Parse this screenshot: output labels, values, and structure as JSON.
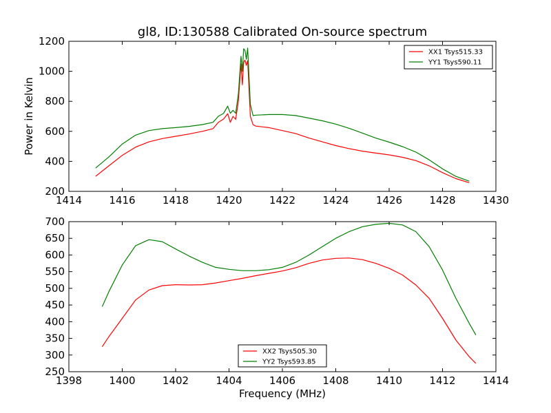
{
  "chart_data": [
    {
      "type": "line",
      "title": "gl8, ID:130588 Calibrated On-source spectrum",
      "xlabel": "",
      "ylabel": "Power in Kelvin",
      "xlim": [
        1414,
        1430
      ],
      "ylim": [
        200,
        1200
      ],
      "xticks": [
        "1414",
        "1416",
        "1418",
        "1420",
        "1422",
        "1424",
        "1426",
        "1428",
        "1430"
      ],
      "yticks": [
        "200",
        "400",
        "600",
        "800",
        "1000",
        "1200"
      ],
      "legend": "top-right",
      "grid": false,
      "series": [
        {
          "name": "XX1 Tsys515.33",
          "color": "#ff0000",
          "x": [
            1415.0,
            1415.5,
            1416.0,
            1416.5,
            1417.0,
            1417.5,
            1418.0,
            1418.5,
            1419.0,
            1419.4,
            1419.6,
            1419.8,
            1419.95,
            1420.05,
            1420.15,
            1420.25,
            1420.35,
            1420.45,
            1420.5,
            1420.55,
            1420.6,
            1420.65,
            1420.7,
            1420.8,
            1420.9,
            1421.0,
            1421.5,
            1422.0,
            1422.5,
            1423.0,
            1423.5,
            1424.0,
            1424.5,
            1425.0,
            1425.5,
            1426.0,
            1426.5,
            1427.0,
            1427.5,
            1428.0,
            1428.5,
            1429.0
          ],
          "values": [
            300,
            370,
            440,
            495,
            530,
            552,
            567,
            582,
            600,
            618,
            660,
            682,
            718,
            660,
            700,
            680,
            800,
            1050,
            910,
            1060,
            1075,
            1040,
            1070,
            700,
            645,
            635,
            625,
            605,
            585,
            555,
            530,
            505,
            485,
            468,
            455,
            443,
            427,
            405,
            370,
            325,
            285,
            258
          ]
        },
        {
          "name": "YY1 Tsys590.11",
          "color": "#008000",
          "x": [
            1415.0,
            1415.5,
            1416.0,
            1416.5,
            1417.0,
            1417.5,
            1418.0,
            1418.5,
            1419.0,
            1419.4,
            1419.6,
            1419.8,
            1419.95,
            1420.05,
            1420.15,
            1420.25,
            1420.35,
            1420.45,
            1420.5,
            1420.55,
            1420.6,
            1420.65,
            1420.7,
            1420.8,
            1420.9,
            1421.0,
            1421.5,
            1422.0,
            1422.5,
            1423.0,
            1423.5,
            1424.0,
            1424.5,
            1425.0,
            1425.5,
            1426.0,
            1426.5,
            1427.0,
            1427.5,
            1428.0,
            1428.5,
            1429.0
          ],
          "values": [
            355,
            430,
            515,
            575,
            605,
            618,
            625,
            633,
            645,
            660,
            700,
            720,
            768,
            720,
            740,
            720,
            850,
            1100,
            1000,
            1150,
            1140,
            1080,
            1155,
            780,
            705,
            708,
            712,
            712,
            705,
            688,
            670,
            648,
            620,
            588,
            555,
            528,
            498,
            462,
            410,
            350,
            300,
            268
          ]
        }
      ]
    },
    {
      "type": "line",
      "title": "",
      "xlabel": "Frequency (MHz)",
      "ylabel": "",
      "xlim": [
        1398,
        1414
      ],
      "ylim": [
        250,
        700
      ],
      "xticks": [
        "1398",
        "1400",
        "1402",
        "1404",
        "1406",
        "1408",
        "1410",
        "1412",
        "1414"
      ],
      "yticks": [
        "250",
        "300",
        "350",
        "400",
        "450",
        "500",
        "550",
        "600",
        "650",
        "700"
      ],
      "legend": "bottom-center",
      "grid": false,
      "series": [
        {
          "name": "XX2 Tsys505.30",
          "color": "#ff0000",
          "x": [
            1399.25,
            1399.5,
            1400.0,
            1400.5,
            1401.0,
            1401.5,
            1402.0,
            1402.5,
            1403.0,
            1403.5,
            1404.0,
            1404.5,
            1405.0,
            1405.5,
            1406.0,
            1406.5,
            1407.0,
            1407.5,
            1408.0,
            1408.5,
            1409.0,
            1409.5,
            1410.0,
            1410.5,
            1411.0,
            1411.5,
            1412.0,
            1412.5,
            1413.0,
            1413.25
          ],
          "values": [
            325,
            355,
            410,
            465,
            495,
            508,
            511,
            510,
            511,
            516,
            523,
            530,
            538,
            545,
            552,
            562,
            575,
            585,
            590,
            591,
            586,
            575,
            560,
            540,
            510,
            470,
            410,
            345,
            295,
            275
          ]
        },
        {
          "name": "YY2 Tsys593.85",
          "color": "#008000",
          "x": [
            1399.25,
            1399.5,
            1400.0,
            1400.5,
            1401.0,
            1401.5,
            1402.0,
            1402.5,
            1403.0,
            1403.5,
            1404.0,
            1404.5,
            1405.0,
            1405.5,
            1406.0,
            1406.5,
            1407.0,
            1407.5,
            1408.0,
            1408.5,
            1409.0,
            1409.5,
            1410.0,
            1410.5,
            1411.0,
            1411.5,
            1412.0,
            1412.5,
            1413.0,
            1413.25
          ],
          "values": [
            445,
            490,
            570,
            628,
            646,
            640,
            618,
            597,
            578,
            563,
            557,
            553,
            553,
            556,
            563,
            578,
            600,
            625,
            650,
            670,
            685,
            692,
            695,
            690,
            670,
            625,
            555,
            470,
            395,
            360
          ]
        }
      ]
    }
  ]
}
